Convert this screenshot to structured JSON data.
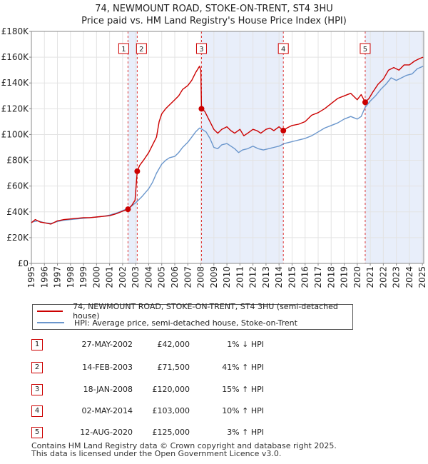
{
  "header": {
    "title_line1": "74, NEWMOUNT ROAD, STOKE-ON-TRENT, ST4 3HU",
    "title_line2": "Price paid vs. HM Land Registry's House Price Index (HPI)"
  },
  "colors": {
    "property": "#cc0000",
    "hpi": "#6a96cc",
    "shade": "#e8eefa",
    "marker_line": "#dd3333"
  },
  "chart_data": {
    "type": "line",
    "title": "74, NEWMOUNT ROAD, STOKE-ON-TRENT, ST4 3HU — Price paid vs. HM Land Registry's House Price Index (HPI)",
    "xlabel": "",
    "ylabel": "",
    "xlim": [
      1995,
      2025.1
    ],
    "ylim": [
      0,
      180000
    ],
    "x_ticks": [
      "1995",
      "1996",
      "1997",
      "1998",
      "1999",
      "2000",
      "2001",
      "2002",
      "2003",
      "2004",
      "2005",
      "2006",
      "2007",
      "2008",
      "2009",
      "2010",
      "2011",
      "2012",
      "2013",
      "2014",
      "2015",
      "2016",
      "2017",
      "2018",
      "2019",
      "2020",
      "2021",
      "2022",
      "2023",
      "2024",
      "2025"
    ],
    "y_ticks": [
      {
        "value": 0,
        "label": "£0"
      },
      {
        "value": 20000,
        "label": "£20K"
      },
      {
        "value": 40000,
        "label": "£40K"
      },
      {
        "value": 60000,
        "label": "£60K"
      },
      {
        "value": 80000,
        "label": "£80K"
      },
      {
        "value": 100000,
        "label": "£100K"
      },
      {
        "value": 120000,
        "label": "£120K"
      },
      {
        "value": 140000,
        "label": "£140K"
      },
      {
        "value": 160000,
        "label": "£160K"
      },
      {
        "value": 180000,
        "label": "£180K"
      }
    ],
    "shaded_ranges": [
      [
        2002.41,
        2003.12
      ],
      [
        2008.05,
        2014.33
      ],
      [
        2020.61,
        2025.1
      ]
    ],
    "series": [
      {
        "name": "74, NEWMOUNT ROAD, STOKE-ON-TRENT, ST4 3HU (semi-detached house)",
        "color": "#cc0000",
        "points": [
          [
            1995,
            31500
          ],
          [
            1995.3,
            34000
          ],
          [
            1995.7,
            32000
          ],
          [
            1996,
            31500
          ],
          [
            1996.5,
            30500
          ],
          [
            1997,
            33000
          ],
          [
            1997.5,
            34000
          ],
          [
            1998,
            34500
          ],
          [
            1998.5,
            35000
          ],
          [
            1999,
            35500
          ],
          [
            1999.5,
            35500
          ],
          [
            2000,
            36000
          ],
          [
            2000.5,
            36500
          ],
          [
            2001,
            37000
          ],
          [
            2001.5,
            38500
          ],
          [
            2002,
            40500
          ],
          [
            2002.41,
            42000
          ],
          [
            2002.7,
            45000
          ],
          [
            2002.95,
            49000
          ],
          [
            2003.12,
            71500
          ],
          [
            2003.3,
            76000
          ],
          [
            2003.6,
            80000
          ],
          [
            2004,
            86000
          ],
          [
            2004.3,
            92000
          ],
          [
            2004.6,
            98000
          ],
          [
            2004.8,
            110000
          ],
          [
            2005,
            116000
          ],
          [
            2005.3,
            120000
          ],
          [
            2005.6,
            123000
          ],
          [
            2006,
            127000
          ],
          [
            2006.3,
            130000
          ],
          [
            2006.6,
            135000
          ],
          [
            2007,
            138000
          ],
          [
            2007.3,
            142000
          ],
          [
            2007.6,
            148000
          ],
          [
            2007.9,
            153000
          ],
          [
            2008.0,
            150000
          ],
          [
            2008.05,
            120000
          ],
          [
            2008.3,
            118000
          ],
          [
            2008.6,
            112000
          ],
          [
            2009,
            104000
          ],
          [
            2009.3,
            101000
          ],
          [
            2009.6,
            104000
          ],
          [
            2010,
            106000
          ],
          [
            2010.3,
            103000
          ],
          [
            2010.6,
            101000
          ],
          [
            2011,
            104000
          ],
          [
            2011.3,
            99000
          ],
          [
            2011.6,
            101000
          ],
          [
            2012,
            104000
          ],
          [
            2012.3,
            103000
          ],
          [
            2012.6,
            101000
          ],
          [
            2013,
            104000
          ],
          [
            2013.3,
            105000
          ],
          [
            2013.6,
            103000
          ],
          [
            2014,
            106000
          ],
          [
            2014.33,
            103000
          ],
          [
            2014.6,
            105000
          ],
          [
            2015,
            107000
          ],
          [
            2015.5,
            108000
          ],
          [
            2016,
            110000
          ],
          [
            2016.5,
            115000
          ],
          [
            2017,
            117000
          ],
          [
            2017.5,
            120000
          ],
          [
            2018,
            124000
          ],
          [
            2018.5,
            128000
          ],
          [
            2019,
            130000
          ],
          [
            2019.5,
            132000
          ],
          [
            2020,
            127000
          ],
          [
            2020.3,
            131000
          ],
          [
            2020.61,
            125000
          ],
          [
            2020.9,
            128000
          ],
          [
            2021.2,
            133000
          ],
          [
            2021.6,
            139000
          ],
          [
            2022,
            143000
          ],
          [
            2022.4,
            150000
          ],
          [
            2022.8,
            152000
          ],
          [
            2023.2,
            150000
          ],
          [
            2023.6,
            154000
          ],
          [
            2024,
            154000
          ],
          [
            2024.4,
            157000
          ],
          [
            2024.8,
            159000
          ],
          [
            2025.05,
            160000
          ]
        ]
      },
      {
        "name": "HPI: Average price, semi-detached house, Stoke-on-Trent",
        "color": "#6a96cc",
        "points": [
          [
            1995,
            32000
          ],
          [
            1995.5,
            33000
          ],
          [
            1996,
            31500
          ],
          [
            1996.5,
            31000
          ],
          [
            1997,
            32500
          ],
          [
            1997.5,
            33500
          ],
          [
            1998,
            34000
          ],
          [
            1998.5,
            34500
          ],
          [
            1999,
            35000
          ],
          [
            1999.5,
            35500
          ],
          [
            2000,
            36000
          ],
          [
            2000.5,
            36500
          ],
          [
            2001,
            37500
          ],
          [
            2001.5,
            39000
          ],
          [
            2002,
            41000
          ],
          [
            2002.5,
            43000
          ],
          [
            2003,
            47000
          ],
          [
            2003.5,
            52000
          ],
          [
            2004,
            58000
          ],
          [
            2004.3,
            63000
          ],
          [
            2004.6,
            70000
          ],
          [
            2005,
            77000
          ],
          [
            2005.3,
            80000
          ],
          [
            2005.6,
            82000
          ],
          [
            2006,
            83000
          ],
          [
            2006.3,
            86000
          ],
          [
            2006.6,
            90000
          ],
          [
            2007,
            94000
          ],
          [
            2007.3,
            98000
          ],
          [
            2007.6,
            102000
          ],
          [
            2007.9,
            105000
          ],
          [
            2008.1,
            104000
          ],
          [
            2008.4,
            102000
          ],
          [
            2008.7,
            97000
          ],
          [
            2009,
            90000
          ],
          [
            2009.3,
            89000
          ],
          [
            2009.6,
            92000
          ],
          [
            2010,
            93000
          ],
          [
            2010.3,
            91000
          ],
          [
            2010.6,
            89000
          ],
          [
            2010.9,
            86000
          ],
          [
            2011.2,
            88000
          ],
          [
            2011.6,
            89000
          ],
          [
            2012,
            91000
          ],
          [
            2012.4,
            89000
          ],
          [
            2012.8,
            88000
          ],
          [
            2013.2,
            89000
          ],
          [
            2013.6,
            90000
          ],
          [
            2014,
            91000
          ],
          [
            2014.4,
            93000
          ],
          [
            2014.8,
            94000
          ],
          [
            2015.2,
            95000
          ],
          [
            2015.6,
            96000
          ],
          [
            2016,
            97000
          ],
          [
            2016.5,
            99000
          ],
          [
            2017,
            102000
          ],
          [
            2017.5,
            105000
          ],
          [
            2018,
            107000
          ],
          [
            2018.5,
            109000
          ],
          [
            2019,
            112000
          ],
          [
            2019.5,
            114000
          ],
          [
            2020,
            112000
          ],
          [
            2020.3,
            114000
          ],
          [
            2020.6,
            121000
          ],
          [
            2021,
            126000
          ],
          [
            2021.4,
            130000
          ],
          [
            2021.8,
            135000
          ],
          [
            2022.2,
            139000
          ],
          [
            2022.6,
            144000
          ],
          [
            2023,
            142000
          ],
          [
            2023.4,
            144000
          ],
          [
            2023.8,
            146000
          ],
          [
            2024.2,
            147000
          ],
          [
            2024.6,
            151000
          ],
          [
            2025.05,
            153000
          ]
        ]
      }
    ],
    "sale_markers": [
      {
        "id": "1",
        "x": 2002.41,
        "price": 42000
      },
      {
        "id": "2",
        "x": 2003.12,
        "price": 71500
      },
      {
        "id": "3",
        "x": 2008.05,
        "price": 120000
      },
      {
        "id": "4",
        "x": 2014.33,
        "price": 103000
      },
      {
        "id": "5",
        "x": 2020.61,
        "price": 125000
      }
    ]
  },
  "legend": {
    "property_label": "74, NEWMOUNT ROAD, STOKE-ON-TRENT, ST4 3HU (semi-detached house)",
    "hpi_label": "HPI: Average price, semi-detached house, Stoke-on-Trent"
  },
  "sales": [
    {
      "num": "1",
      "date": "27-MAY-2002",
      "price": "£42,000",
      "hpi": "1% ↓ HPI"
    },
    {
      "num": "2",
      "date": "14-FEB-2003",
      "price": "£71,500",
      "hpi": "41% ↑ HPI"
    },
    {
      "num": "3",
      "date": "18-JAN-2008",
      "price": "£120,000",
      "hpi": "15% ↑ HPI"
    },
    {
      "num": "4",
      "date": "02-MAY-2014",
      "price": "£103,000",
      "hpi": "10% ↑ HPI"
    },
    {
      "num": "5",
      "date": "12-AUG-2020",
      "price": "£125,000",
      "hpi": "3% ↑ HPI"
    }
  ],
  "footer": {
    "line1": "Contains HM Land Registry data © Crown copyright and database right 2025.",
    "line2": "This data is licensed under the Open Government Licence v3.0."
  }
}
